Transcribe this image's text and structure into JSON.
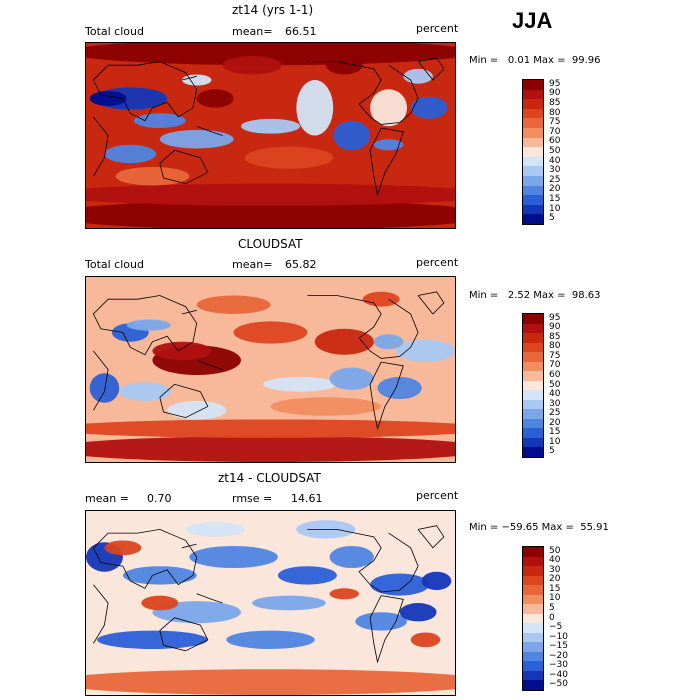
{
  "season": "JJA",
  "panels": [
    {
      "title": "zt14 (yrs 1-1)",
      "left_label": "Total cloud",
      "mid_label": "mean=",
      "mid_value": "66.51",
      "right_label": "percent",
      "minmax": "Min =   0.01 Max =  99.96",
      "levels": [
        "95",
        "90",
        "85",
        "80",
        "75",
        "70",
        "60",
        "50",
        "40",
        "30",
        "25",
        "20",
        "15",
        "10",
        "5"
      ],
      "colors": [
        "#8b0000",
        "#b01010",
        "#c8280f",
        "#dc4520",
        "#e8673a",
        "#f28d60",
        "#f8b89a",
        "#fbe6dc",
        "#d4e4f7",
        "#a9c8f2",
        "#7aa7ea",
        "#4f85e0",
        "#2b5fd6",
        "#1437b8",
        "#000d8c"
      ],
      "field": "model",
      "bg": "#c8280f"
    },
    {
      "title": "CLOUDSAT",
      "left_label": "Total cloud",
      "mid_label": "mean=",
      "mid_value": "65.82",
      "right_label": "percent",
      "minmax": "Min =   2.52 Max =  98.63",
      "levels": [
        "95",
        "90",
        "85",
        "80",
        "75",
        "70",
        "60",
        "50",
        "40",
        "30",
        "25",
        "20",
        "15",
        "10",
        "5"
      ],
      "colors": [
        "#8b0000",
        "#b01010",
        "#c8280f",
        "#dc4520",
        "#e8673a",
        "#f28d60",
        "#f8b89a",
        "#fbe6dc",
        "#d4e4f7",
        "#a9c8f2",
        "#7aa7ea",
        "#4f85e0",
        "#2b5fd6",
        "#1437b8",
        "#000d8c"
      ],
      "field": "obs",
      "bg": "#f8b89a"
    },
    {
      "title": "zt14 - CLOUDSAT",
      "left_label": "mean =",
      "left_value": "0.70",
      "mid_label": "rmse =",
      "mid_value": "14.61",
      "right_label": "percent",
      "minmax": "Min = −59.65 Max =  55.91",
      "levels": [
        "50",
        "40",
        "30",
        "20",
        "15",
        "10",
        "5",
        "0",
        "−5",
        "−10",
        "−15",
        "−20",
        "−30",
        "−40",
        "−50"
      ],
      "colors": [
        "#8b0000",
        "#b01010",
        "#c8280f",
        "#dc4520",
        "#e8673a",
        "#f28d60",
        "#f8b89a",
        "#fbe6dc",
        "#d4e4f7",
        "#a9c8f2",
        "#7aa7ea",
        "#4f85e0",
        "#2b5fd6",
        "#1437b8",
        "#000d8c"
      ],
      "field": "diff",
      "bg": "#fbe6dc"
    }
  ]
}
